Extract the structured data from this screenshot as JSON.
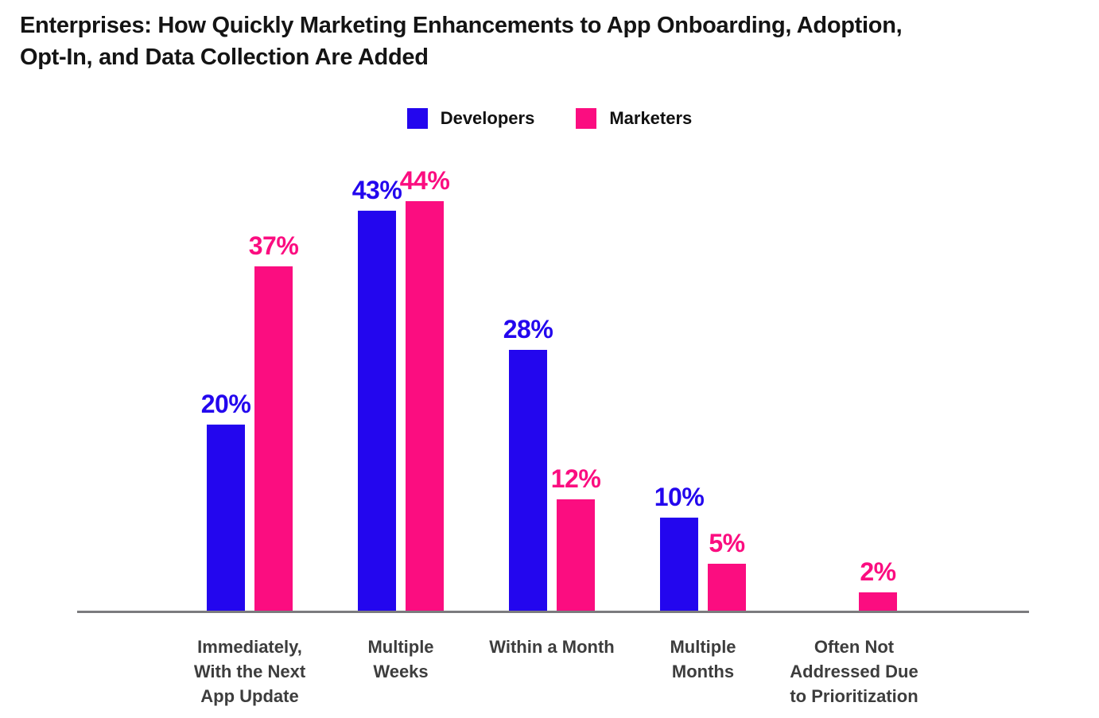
{
  "title": "Enterprises: How Quickly Marketing Enhancements to App Onboarding, Adoption,\nOpt-In, and Data Collection Are Added",
  "colors": {
    "developers": "#2306EE",
    "marketers": "#FB0D80",
    "axis_line": "#7b7b7e",
    "category_text": "#3d3d3d",
    "title_text": "#141414"
  },
  "chart_data": {
    "type": "bar",
    "title": "Enterprises: How Quickly Marketing Enhancements to App Onboarding, Adoption, Opt-In, and Data Collection Are Added",
    "categories": [
      "Immediately,\nWith the Next\nApp Update",
      "Multiple\nWeeks",
      "Within a Month",
      "Multiple\nMonths",
      "Often Not\nAddressed Due\nto Prioritization"
    ],
    "series": [
      {
        "name": "Developers",
        "color": "#2306EE",
        "values": [
          20,
          43,
          28,
          10,
          null
        ]
      },
      {
        "name": "Marketers",
        "color": "#FB0D80",
        "values": [
          37,
          44,
          12,
          5,
          2
        ]
      }
    ],
    "value_suffix": "%",
    "data_labels": [
      "20%",
      "43%",
      "28%",
      "10%",
      "37%",
      "44%",
      "12%",
      "5%",
      "2%"
    ],
    "xlabel": "",
    "ylabel": "",
    "ylim": [
      0,
      48
    ],
    "grid": false,
    "y_axis_shown": false,
    "legend_position": "top-center"
  }
}
